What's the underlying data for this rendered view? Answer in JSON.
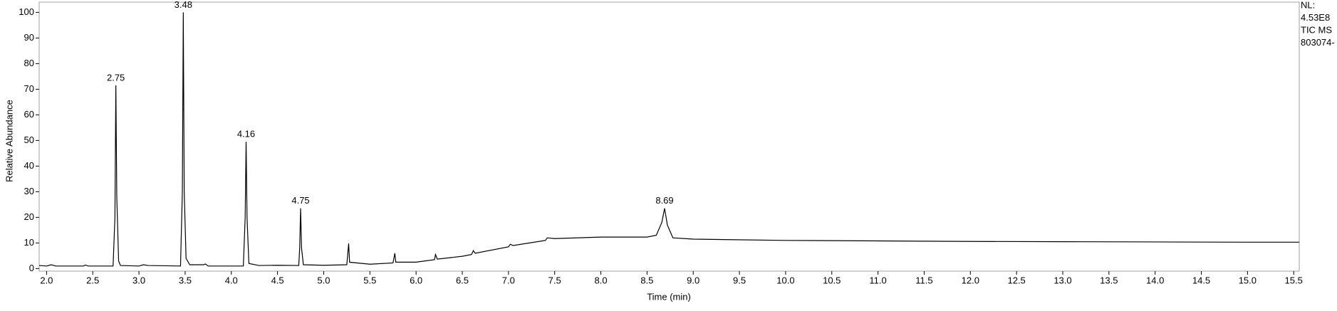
{
  "chart_data": {
    "type": "line",
    "x_label": "Time (min)",
    "y_label": "Relative Abundance",
    "side_text": [
      "NL:",
      "4.53E8",
      "TIC  MS",
      "803074-"
    ],
    "xlim": [
      1.92,
      15.56
    ],
    "ylim": [
      -1,
      104
    ],
    "xticks": [
      {
        "value": 2,
        "label": "2.0"
      },
      2.5,
      {
        "value": 3,
        "label": "3.0"
      },
      3.5,
      {
        "value": 4,
        "label": "4.0"
      },
      4.5,
      {
        "value": 5,
        "label": "5.0"
      },
      5.5,
      {
        "value": 6,
        "label": "6.0"
      },
      6.5,
      {
        "value": 7,
        "label": "7.0"
      },
      7.5,
      {
        "value": 8,
        "label": "8.0"
      },
      8.5,
      {
        "value": 9,
        "label": "9.0"
      },
      9.5,
      {
        "value": 10,
        "label": "10.0"
      },
      10.5,
      {
        "value": 11,
        "label": "11.0"
      },
      11.5,
      {
        "value": 12,
        "label": "12.0"
      },
      12.5,
      {
        "value": 13,
        "label": "13.0"
      },
      13.5,
      {
        "value": 14,
        "label": "14.0"
      },
      14.5,
      {
        "value": 15,
        "label": "15.0"
      },
      15.5
    ],
    "yticks": [
      0,
      10,
      20,
      30,
      40,
      50,
      60,
      70,
      80,
      90,
      100
    ],
    "annotations": [
      {
        "text": "2.75",
        "x": 2.75,
        "y": 71.5
      },
      {
        "text": "3.48",
        "x": 3.48,
        "y": 100
      },
      {
        "text": "4.16",
        "x": 4.16,
        "y": 49.5
      },
      {
        "text": "4.75",
        "x": 4.75,
        "y": 23.5
      },
      {
        "text": "8.69",
        "x": 8.69,
        "y": 23.5
      }
    ],
    "series": [
      {
        "color": "#000000",
        "x": [
          1.92,
          2.0,
          2.05,
          2.1,
          2.4,
          2.42,
          2.45,
          2.72,
          2.74,
          2.75,
          2.76,
          2.78,
          2.8,
          3.0,
          3.05,
          3.1,
          3.45,
          3.47,
          3.48,
          3.49,
          3.51,
          3.55,
          3.7,
          3.72,
          3.75,
          4.13,
          4.15,
          4.16,
          4.17,
          4.19,
          4.3,
          4.5,
          4.73,
          4.74,
          4.75,
          4.76,
          4.78,
          5.0,
          5.25,
          5.27,
          5.28,
          5.5,
          5.75,
          5.77,
          5.78,
          6.0,
          6.2,
          6.21,
          6.23,
          6.5,
          6.6,
          6.62,
          6.64,
          7.0,
          7.02,
          7.05,
          7.4,
          7.42,
          7.5,
          8.0,
          8.5,
          8.6,
          8.66,
          8.69,
          8.72,
          8.78,
          9.0,
          10.0,
          11.0,
          12.0,
          13.0,
          14.0,
          15.0,
          15.56
        ],
        "values": [
          1.2,
          1.0,
          1.5,
          1.0,
          1.0,
          1.4,
          1.0,
          1.0,
          20,
          71.5,
          28,
          3,
          1.2,
          1.0,
          1.5,
          1.2,
          1.0,
          30,
          100,
          30,
          4,
          1.5,
          1.5,
          1.8,
          1.0,
          1.0,
          20,
          49.5,
          20,
          2,
          1.2,
          1.3,
          1.2,
          8,
          23.5,
          8,
          1.5,
          1.3,
          1.5,
          9.8,
          2.5,
          1.7,
          2.2,
          6,
          2.5,
          2.5,
          3.5,
          5.5,
          3.7,
          4.8,
          5.5,
          7,
          6,
          8.5,
          9.5,
          9,
          11,
          12,
          11.7,
          12.3,
          12.3,
          13,
          18,
          23.5,
          17,
          12,
          11.5,
          11,
          10.8,
          10.6,
          10.5,
          10.4,
          10.3,
          10.3
        ]
      }
    ]
  }
}
